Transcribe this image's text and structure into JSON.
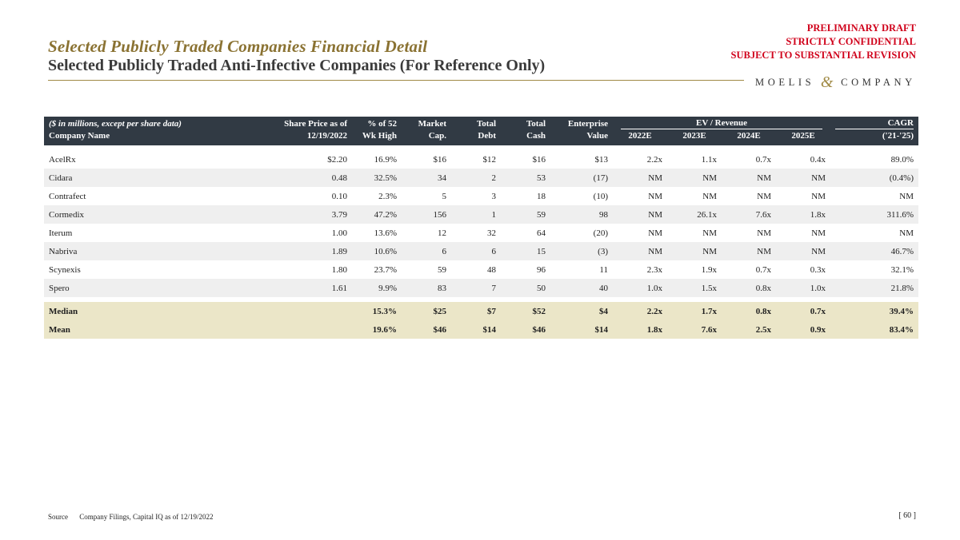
{
  "banner": {
    "line1": "PRELIMINARY DRAFT",
    "line2": "STRICTLY CONFIDENTIAL",
    "line3": "SUBJECT TO SUBSTANTIAL REVISION"
  },
  "header": {
    "title": "Selected Publicly Traded Companies Financial Detail",
    "subtitle": "Selected Publicly Traded Anti-Infective Companies (For Reference Only)",
    "logo_left": "MOELIS",
    "logo_amp": "&",
    "logo_right": "COMPANY"
  },
  "table": {
    "units_note": "($ in millions, except per share data)",
    "col_company": "Company Name",
    "col_price_1": "Share Price as of",
    "col_price_2": "12/19/2022",
    "col_pct_1": "% of 52",
    "col_pct_2": "Wk High",
    "col_mcap_1": "Market",
    "col_mcap_2": "Cap.",
    "col_debt_1": "Total",
    "col_debt_2": "Debt",
    "col_cash_1": "Total",
    "col_cash_2": "Cash",
    "col_ev_1": "Enterprise",
    "col_ev_2": "Value",
    "group_ev_rev": "EV / Revenue",
    "years": [
      "2022E",
      "2023E",
      "2024E",
      "2025E"
    ],
    "col_cagr_1": "CAGR",
    "col_cagr_2": "('21-'25)",
    "rows": [
      {
        "name": "AcelRx",
        "price": "$2.20",
        "pct": "16.9%",
        "mcap": "$16",
        "debt": "$12",
        "cash": "$16",
        "ev": "$13",
        "y1": "2.2x",
        "y2": "1.1x",
        "y3": "0.7x",
        "y4": "0.4x",
        "cagr": "89.0%"
      },
      {
        "name": "Cidara",
        "price": "0.48",
        "pct": "32.5%",
        "mcap": "34",
        "debt": "2",
        "cash": "53",
        "ev": "(17)",
        "y1": "NM",
        "y2": "NM",
        "y3": "NM",
        "y4": "NM",
        "cagr": "(0.4%)"
      },
      {
        "name": "Contrafect",
        "price": "0.10",
        "pct": "2.3%",
        "mcap": "5",
        "debt": "3",
        "cash": "18",
        "ev": "(10)",
        "y1": "NM",
        "y2": "NM",
        "y3": "NM",
        "y4": "NM",
        "cagr": "NM"
      },
      {
        "name": "Cormedix",
        "price": "3.79",
        "pct": "47.2%",
        "mcap": "156",
        "debt": "1",
        "cash": "59",
        "ev": "98",
        "y1": "NM",
        "y2": "26.1x",
        "y3": "7.6x",
        "y4": "1.8x",
        "cagr": "311.6%"
      },
      {
        "name": "Iterum",
        "price": "1.00",
        "pct": "13.6%",
        "mcap": "12",
        "debt": "32",
        "cash": "64",
        "ev": "(20)",
        "y1": "NM",
        "y2": "NM",
        "y3": "NM",
        "y4": "NM",
        "cagr": "NM"
      },
      {
        "name": "Nabriva",
        "price": "1.89",
        "pct": "10.6%",
        "mcap": "6",
        "debt": "6",
        "cash": "15",
        "ev": "(3)",
        "y1": "NM",
        "y2": "NM",
        "y3": "NM",
        "y4": "NM",
        "cagr": "46.7%"
      },
      {
        "name": "Scynexis",
        "price": "1.80",
        "pct": "23.7%",
        "mcap": "59",
        "debt": "48",
        "cash": "96",
        "ev": "11",
        "y1": "2.3x",
        "y2": "1.9x",
        "y3": "0.7x",
        "y4": "0.3x",
        "cagr": "32.1%"
      },
      {
        "name": "Spero",
        "price": "1.61",
        "pct": "9.9%",
        "mcap": "83",
        "debt": "7",
        "cash": "50",
        "ev": "40",
        "y1": "1.0x",
        "y2": "1.5x",
        "y3": "0.8x",
        "y4": "1.0x",
        "cagr": "21.8%"
      }
    ],
    "stats": [
      {
        "name": "Median",
        "price": "",
        "pct": "15.3%",
        "mcap": "$25",
        "debt": "$7",
        "cash": "$52",
        "ev": "$4",
        "y1": "2.2x",
        "y2": "1.7x",
        "y3": "0.8x",
        "y4": "0.7x",
        "cagr": "39.4%"
      },
      {
        "name": "Mean",
        "price": "",
        "pct": "19.6%",
        "mcap": "$46",
        "debt": "$14",
        "cash": "$46",
        "ev": "$14",
        "y1": "1.8x",
        "y2": "7.6x",
        "y3": "2.5x",
        "y4": "0.9x",
        "cagr": "83.4%"
      }
    ]
  },
  "footer": {
    "source_label": "Source",
    "source_text": "Company Filings, Capital IQ as of 12/19/2022",
    "page_number": "[ 60 ]"
  }
}
